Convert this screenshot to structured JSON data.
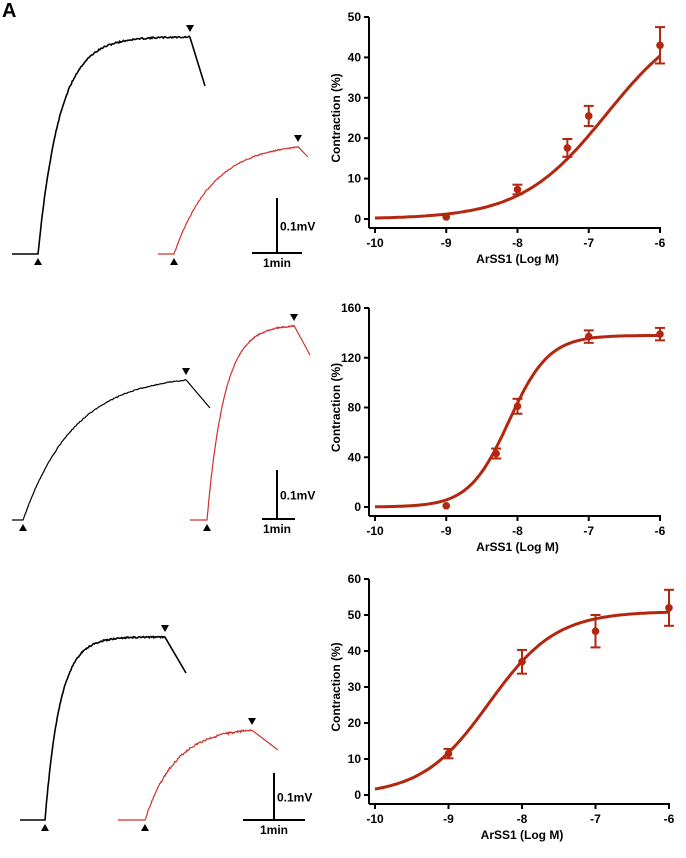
{
  "panel_letter": "A",
  "scalebar": {
    "voltage_label": "0.1mV",
    "time_label": "1min"
  },
  "colors": {
    "control_trace": "#000000",
    "drug_trace": "#d0312d",
    "fit": "#b3260f",
    "axis": "#000000"
  },
  "chart_data": [
    {
      "type": "scatter",
      "fit": "sigmoidal dose-response curve",
      "xlabel": "ArSS1 (Log M)",
      "ylabel": "Contraction (%)",
      "xlim": [
        -10,
        -6
      ],
      "ylim": [
        0,
        50
      ],
      "xticks": [
        -10,
        -9,
        -8,
        -7,
        -6
      ],
      "yticks": [
        0,
        10,
        20,
        30,
        40,
        50
      ],
      "points": [
        {
          "x": -9,
          "y": 0.5,
          "err": 0
        },
        {
          "x": -8,
          "y": 7.3,
          "err": 1.2
        },
        {
          "x": -7.3,
          "y": 17.6,
          "err": 2.2
        },
        {
          "x": -7,
          "y": 25.5,
          "err": 2.5
        },
        {
          "x": -6,
          "y": 43.0,
          "err": 4.5
        }
      ],
      "fit_params": {
        "bottom": 0,
        "top": 52,
        "logEC50": -6.75,
        "hill": 0.72
      }
    },
    {
      "type": "scatter",
      "fit": "sigmoidal dose-response curve",
      "xlabel": "ArSS1 (Log M)",
      "ylabel": "Contraction (%)",
      "xlim": [
        -10,
        -6
      ],
      "ylim": [
        0,
        160
      ],
      "xticks": [
        -10,
        -9,
        -8,
        -7,
        -6
      ],
      "yticks": [
        0,
        40,
        80,
        120,
        160
      ],
      "points": [
        {
          "x": -9,
          "y": 1,
          "err": 0
        },
        {
          "x": -8.3,
          "y": 43,
          "err": 4
        },
        {
          "x": -8,
          "y": 81,
          "err": 6
        },
        {
          "x": -7,
          "y": 137,
          "err": 5
        },
        {
          "x": -6,
          "y": 139,
          "err": 5
        }
      ],
      "fit_params": {
        "bottom": 0,
        "top": 138,
        "logEC50": -8.12,
        "hill": 1.55
      }
    },
    {
      "type": "scatter",
      "fit": "sigmoidal dose-response curve",
      "xlabel": "ArSS1 (Log M)",
      "ylabel": "Contraction (%)",
      "xlim": [
        -10,
        -6
      ],
      "ylim": [
        0,
        60
      ],
      "xticks": [
        -10,
        -9,
        -8,
        -7,
        -6
      ],
      "yticks": [
        0,
        10,
        20,
        30,
        40,
        50,
        60
      ],
      "points": [
        {
          "x": -9,
          "y": 11.5,
          "err": 1.3
        },
        {
          "x": -8,
          "y": 37,
          "err": 3.3
        },
        {
          "x": -7,
          "y": 45.5,
          "err": 4.5
        },
        {
          "x": -6,
          "y": 52,
          "err": 5
        }
      ],
      "fit_params": {
        "bottom": 0,
        "top": 51,
        "logEC50": -8.45,
        "hill": 0.95
      }
    }
  ]
}
